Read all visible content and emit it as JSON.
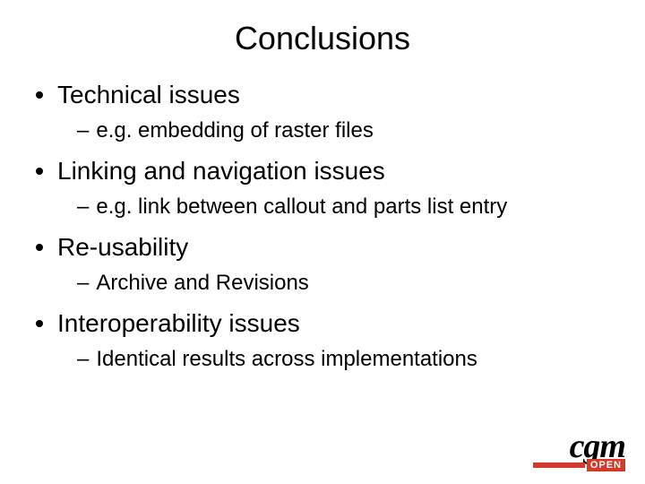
{
  "slide": {
    "title": "Conclusions",
    "title_fontsize": 36,
    "background_color": "#ffffff",
    "text_color": "#000000",
    "bullets": [
      {
        "text": "Technical issues",
        "sub": [
          {
            "text": "e.g. embedding of raster files"
          }
        ]
      },
      {
        "text": "Linking and navigation issues",
        "sub": [
          {
            "text": "e.g. link between callout and parts list entry"
          }
        ]
      },
      {
        "text": "Re-usability",
        "sub": [
          {
            "text": "Archive and Revisions"
          }
        ]
      },
      {
        "text": "Interoperability issues",
        "sub": [
          {
            "text": "Identical results across implementations"
          }
        ]
      }
    ],
    "lvl1_fontsize": 28,
    "lvl2_fontsize": 24,
    "bullet_color": "#000000"
  },
  "logo": {
    "text_main": "cgm",
    "text_sub": "OPEN",
    "accent_color": "#d43a2a",
    "main_color": "#000000",
    "sub_text_color": "#ffffff"
  }
}
